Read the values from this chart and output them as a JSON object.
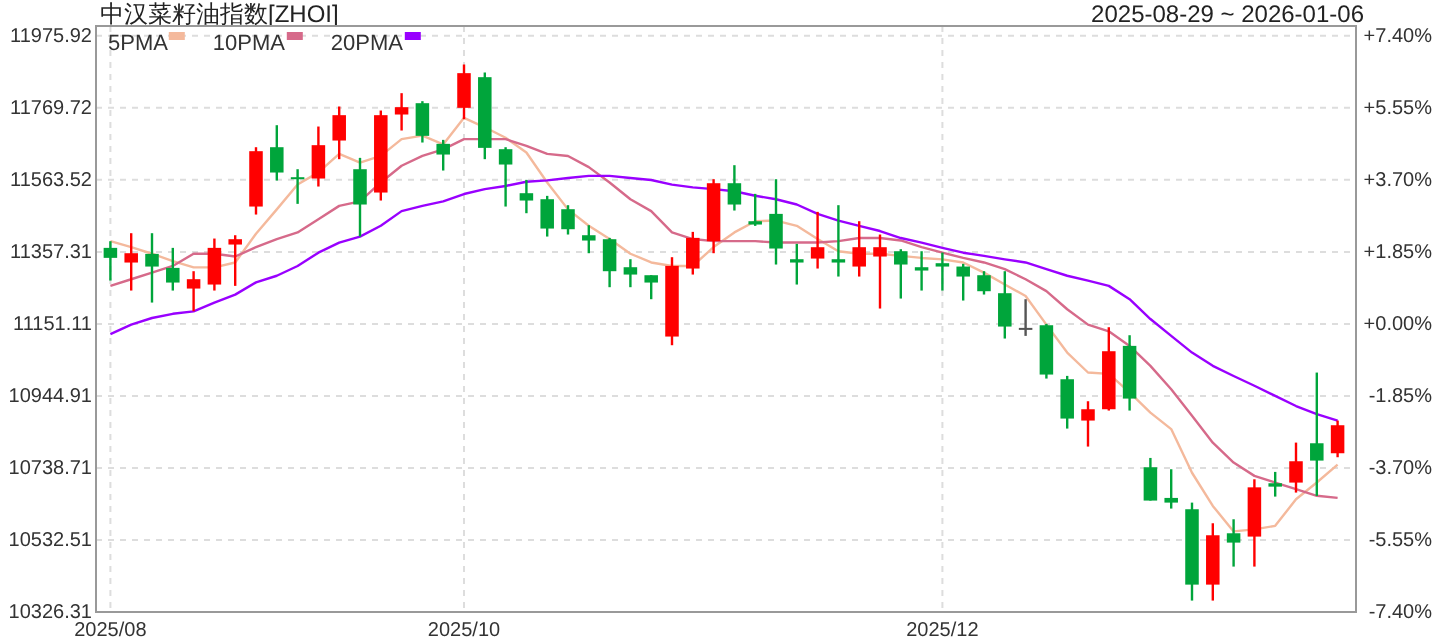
{
  "chart_data": {
    "type": "candlestick",
    "title": "中汉菜籽油指数[ZHOI]",
    "subtitle": "2025-08-29 ~ 2026-01-06",
    "categories": [
      "2025/08",
      null,
      null,
      null,
      null,
      null,
      null,
      null,
      null,
      null,
      null,
      null,
      null,
      null,
      null,
      null,
      null,
      "2025/10",
      null,
      null,
      null,
      null,
      null,
      null,
      null,
      null,
      null,
      null,
      null,
      null,
      null,
      null,
      null,
      null,
      null,
      null,
      null,
      null,
      null,
      null,
      "2025/12",
      null,
      null,
      null,
      null,
      null,
      null,
      null,
      null,
      null,
      null,
      null,
      null,
      null,
      null,
      null,
      null,
      null,
      null,
      null
    ],
    "ohlc": [
      [
        11368.8,
        11387.9,
        11275.2,
        11340.2
      ],
      [
        11326.8,
        11410.8,
        11246.6,
        11353.5
      ],
      [
        11351.6,
        11410.8,
        11212.2,
        11315.3
      ],
      [
        11311.5,
        11368.8,
        11246.6,
        11269.5
      ],
      [
        11252.3,
        11302,
        11187.4,
        11279.1
      ],
      [
        11263.8,
        11395.5,
        11246.6,
        11368.8
      ],
      [
        11378.3,
        11405,
        11260,
        11393.6
      ],
      [
        11487.1,
        11657,
        11464.2,
        11645.6
      ],
      [
        11657,
        11720,
        11561.6,
        11584.5
      ],
      [
        11571.1,
        11594,
        11494.8,
        11567.3
      ],
      [
        11567.3,
        11716.2,
        11544.4,
        11662.8
      ],
      [
        11676.1,
        11773.5,
        11622.7,
        11748.7
      ],
      [
        11594,
        11626.5,
        11401.2,
        11492.9
      ],
      [
        11527.2,
        11762,
        11504.3,
        11748.7
      ],
      [
        11750.6,
        11811.7,
        11704.8,
        11771.6
      ],
      [
        11783,
        11788.8,
        11670.4,
        11689.5
      ],
      [
        11666.6,
        11678,
        11590.2,
        11636
      ],
      [
        11769.7,
        11893.8,
        11737.2,
        11869
      ],
      [
        11857.5,
        11870.9,
        11622.7,
        11655.1
      ],
      [
        11651.3,
        11657,
        11487.1,
        11607.4
      ],
      [
        11525.3,
        11563.5,
        11468,
        11504.3
      ],
      [
        11508.1,
        11517.7,
        11401.2,
        11424.1
      ],
      [
        11479.5,
        11491,
        11407,
        11422.2
      ],
      [
        11405,
        11433.7,
        11353.5,
        11389.8
      ],
      [
        11393.6,
        11397.4,
        11256.2,
        11302
      ],
      [
        11313.4,
        11336.3,
        11256.2,
        11292.4
      ],
      [
        11290.5,
        11290.5,
        11221.8,
        11269.5
      ],
      [
        11114.9,
        11342.1,
        11090.1,
        11317.2
      ],
      [
        11309.6,
        11414.6,
        11292.4,
        11397.4
      ],
      [
        11387.9,
        11565.4,
        11353.5,
        11553.9
      ],
      [
        11553.9,
        11605.5,
        11475.7,
        11492.9
      ],
      [
        11445.1,
        11523.4,
        11431.8,
        11435.6
      ],
      [
        11466.1,
        11565.4,
        11321.1,
        11366.9
      ],
      [
        11336.3,
        11380.2,
        11263.8,
        11326.8
      ],
      [
        11338.2,
        11471.9,
        11309.6,
        11370.7
      ],
      [
        11336.3,
        11491,
        11286.7,
        11326.8
      ],
      [
        11315.3,
        11445.1,
        11286.7,
        11370.7
      ],
      [
        11344,
        11407,
        11195.1,
        11370.7
      ],
      [
        11359.2,
        11365,
        11223.7,
        11321.1
      ],
      [
        11313.4,
        11359.2,
        11246.6,
        11303.9
      ],
      [
        11324.9,
        11355.4,
        11246.6,
        11315.3
      ],
      [
        11315.3,
        11323,
        11218,
        11286.7
      ],
      [
        11290.5,
        11302,
        11235.2,
        11244.7
      ],
      [
        11239,
        11302,
        11109.2,
        11143.5
      ],
      [
        11139.7,
        11221.8,
        11116.8,
        11139.7
      ],
      [
        11147.3,
        11151.1,
        10994.6,
        11006.1
      ],
      [
        10992.7,
        11002.3,
        10851.4,
        10880.1
      ],
      [
        10874.4,
        10929.7,
        10799.9,
        10906.8
      ],
      [
        10906.8,
        11141.6,
        10903,
        11072.9
      ],
      [
        11088.2,
        11118.7,
        10903,
        10937.3
      ],
      [
        10740.7,
        10767.4,
        10645.3,
        10645.3
      ],
      [
        10652.9,
        10735,
        10622.4,
        10639.5
      ],
      [
        10620.5,
        10639.5,
        10359,
        10404.7
      ],
      [
        10404.7,
        10580.4,
        10359,
        10546
      ],
      [
        10551.7,
        10591.8,
        10456.3,
        10525
      ],
      [
        10542.2,
        10706.3,
        10456.3,
        10683.2
      ],
      [
        10694.9,
        10727.4,
        10656.7,
        10685.2
      ],
      [
        10696.8,
        10811.3,
        10668.2,
        10757.9
      ],
      [
        10809.4,
        11011.8,
        10658.6,
        10759.8
      ],
      [
        10780.8,
        10874.4,
        10769.4,
        10861
      ]
    ],
    "colors": [
      "#00a53b",
      "#ff0000",
      "#00a53b",
      "#00a53b",
      "#ff0000",
      "#ff0000",
      "#ff0000",
      "#ff0000",
      "#00a53b",
      "#00a53b",
      "#ff0000",
      "#ff0000",
      "#00a53b",
      "#ff0000",
      "#ff0000",
      "#00a53b",
      "#00a53b",
      "#ff0000",
      "#00a53b",
      "#00a53b",
      "#00a53b",
      "#00a53b",
      "#00a53b",
      "#00a53b",
      "#00a53b",
      "#00a53b",
      "#00a53b",
      "#ff0000",
      "#ff0000",
      "#ff0000",
      "#00a53b",
      "#00a53b",
      "#00a53b",
      "#00a53b",
      "#ff0000",
      "#00a53b",
      "#ff0000",
      "#ff0000",
      "#00a53b",
      "#00a53b",
      "#00a53b",
      "#00a53b",
      "#00a53b",
      "#00a53b",
      "#555555",
      "#00a53b",
      "#00a53b",
      "#ff0000",
      "#ff0000",
      "#00a53b",
      "#00a53b",
      "#00a53b",
      "#00a53b",
      "#ff0000",
      "#00a53b",
      "#ff0000",
      "#00a53b",
      "#ff0000",
      "#00a53b",
      "#ff0000"
    ],
    "series": [
      {
        "name": "5PMA",
        "type": "line",
        "color": "#f4b99c",
        "values": [
          11388,
          11371,
          11352,
          11331,
          11313,
          11313,
          11327,
          11409,
          11479,
          11550,
          11585,
          11638,
          11613,
          11632,
          11680,
          11690,
          11665,
          11741,
          11714,
          11684,
          11642,
          11556,
          11479,
          11432,
          11394,
          11352,
          11327,
          11317,
          11317,
          11371,
          11413,
          11445,
          11447,
          11432,
          11394,
          11359,
          11352,
          11352,
          11346,
          11340,
          11336,
          11327,
          11298,
          11264,
          11231,
          11149,
          11069,
          11012,
          11008,
          10955,
          10897,
          10850,
          10725,
          10630,
          10557,
          10563,
          10573,
          10649,
          10697,
          10748
        ]
      },
      {
        "name": "10PMA",
        "type": "line",
        "color": "#d66a8a",
        "values": [
          11260,
          11279,
          11298,
          11317,
          11352,
          11352,
          11344,
          11371,
          11394,
          11413,
          11451,
          11489,
          11502,
          11556,
          11604,
          11632,
          11651,
          11680,
          11680,
          11680,
          11661,
          11638,
          11632,
          11600,
          11556,
          11508,
          11474,
          11413,
          11394,
          11388,
          11388,
          11388,
          11384,
          11384,
          11384,
          11388,
          11397,
          11397,
          11390,
          11371,
          11355,
          11340,
          11327,
          11308,
          11279,
          11245,
          11193,
          11149,
          11130,
          11088,
          11031,
          10964,
          10888,
          10811,
          10754,
          10716,
          10697,
          10678,
          10659,
          10653
        ]
      },
      {
        "name": "20PMA",
        "type": "line",
        "color": "#9900ff",
        "values": [
          11122,
          11149,
          11168,
          11180,
          11187,
          11212,
          11235,
          11270,
          11289,
          11317,
          11355,
          11384,
          11401,
          11432,
          11474,
          11489,
          11502,
          11523,
          11537,
          11546,
          11558,
          11562,
          11569,
          11575,
          11575,
          11569,
          11563,
          11550,
          11542,
          11537,
          11531,
          11518,
          11508,
          11493,
          11466,
          11447,
          11432,
          11417,
          11397,
          11384,
          11369,
          11355,
          11346,
          11336,
          11327,
          11308,
          11289,
          11275,
          11260,
          11222,
          11165,
          11117,
          11069,
          11031,
          11002,
          10974,
          10945,
          10916,
          10893,
          10874
        ]
      }
    ],
    "ylim": [
      10326.31,
      12004
    ],
    "yticks": [
      10326.31,
      10532.51,
      10738.71,
      10944.91,
      11151.11,
      11357.31,
      11563.52,
      11769.72,
      11975.92
    ],
    "y2lim": [
      -7.4,
      7.65
    ],
    "y2ticks": [
      {
        "value": -7.4,
        "label": "-7.40%"
      },
      {
        "value": -5.55,
        "label": "-5.55%"
      },
      {
        "value": -3.7,
        "label": "-3.70%"
      },
      {
        "value": -1.85,
        "label": "-1.85%"
      },
      {
        "value": 0,
        "label": "+0.00%"
      },
      {
        "value": 1.85,
        "label": "+1.85%"
      },
      {
        "value": 3.7,
        "label": "+3.70%"
      },
      {
        "value": 5.55,
        "label": "+5.55%"
      },
      {
        "value": 7.4,
        "label": "+7.40%"
      }
    ],
    "grid": true,
    "legend": "top left",
    "line_style": "solid",
    "marker": "none"
  }
}
